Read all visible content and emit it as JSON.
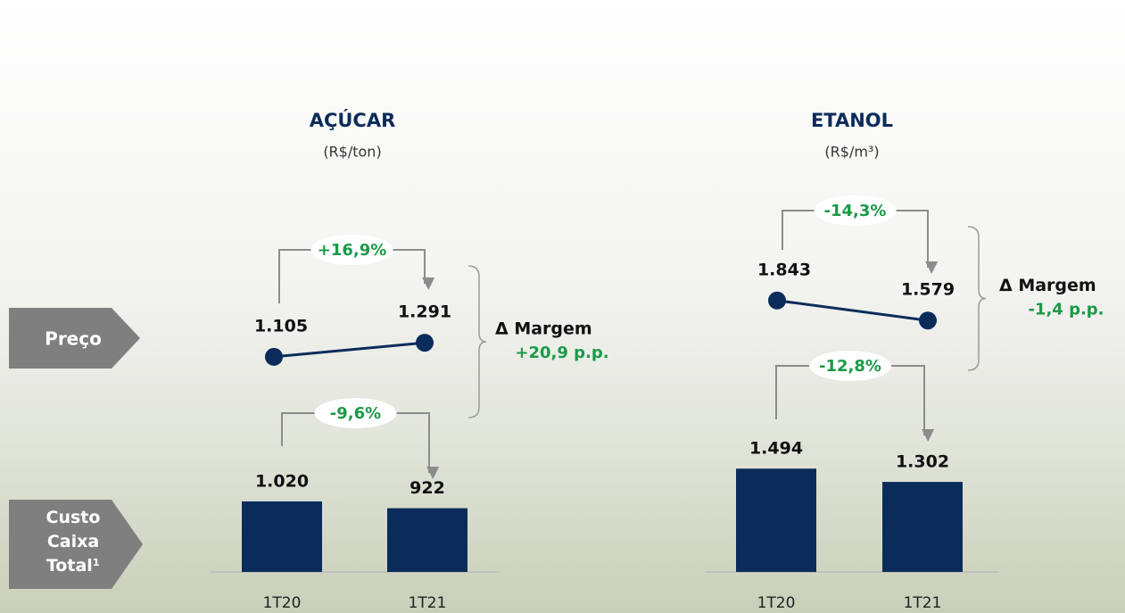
{
  "row_labels": [
    "Preço",
    "Custo Caixa Total¹"
  ],
  "chart_data": [
    {
      "type": "price-cost",
      "title": "AÇÚCAR",
      "subtitle": "(R$/ton)",
      "categories": [
        "1T20",
        "1T21"
      ],
      "series": [
        {
          "color": "#0b2c5a",
          "values": [
            1105,
            1291
          ],
          "value_labels": [
            "1.105",
            "1.291"
          ]
        },
        {
          "color": "#0b2c5a",
          "values": [
            1020,
            922
          ],
          "value_labels": [
            "1.020",
            "922"
          ]
        }
      ],
      "annotations": {
        "price_change": "+16,9%",
        "cost_change": "-9,6%",
        "margin_label": "Δ Margem",
        "margin_change": "+20,9 p.p."
      }
    },
    {
      "type": "price-cost",
      "title": "ETANOL",
      "subtitle": "(R$/m³)",
      "categories": [
        "1T20",
        "1T21"
      ],
      "series": [
        {
          "color": "#0b2c5a",
          "values": [
            1843,
            1579
          ],
          "value_labels": [
            "1.843",
            "1.579"
          ]
        },
        {
          "color": "#0b2c5a",
          "values": [
            1494,
            1302
          ],
          "value_labels": [
            "1.494",
            "1.302"
          ]
        }
      ],
      "annotations": {
        "price_change": "-14,3%",
        "cost_change": "-12,8%",
        "margin_label": "Δ Margem",
        "margin_change": "-1,4 p.p."
      }
    }
  ]
}
